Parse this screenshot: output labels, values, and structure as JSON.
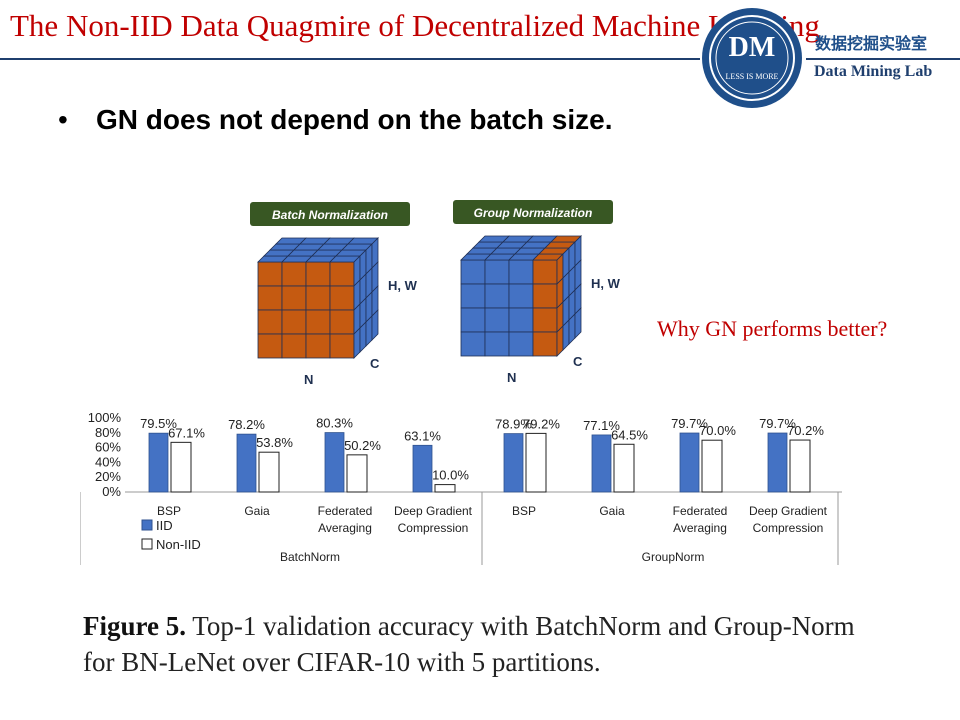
{
  "slide": {
    "title": "The Non-IID Data Quagmire of Decentralized Machine Learning",
    "bullet": "GN does not depend on the batch size.",
    "annotation": "Why GN performs better?",
    "accent_color": "#c00000"
  },
  "logo": {
    "monogram": "DM",
    "tagline": "LESS IS MORE",
    "lab_name_cn": "数据挖掘实验室",
    "lab_name_en": "Data Mining Lab"
  },
  "diagram": {
    "left": {
      "label": "Batch Normalization",
      "axis_hw": "H, W",
      "axis_c": "C",
      "axis_n": "N"
    },
    "right": {
      "label": "Group Normalization",
      "axis_hw": "H, W",
      "axis_c": "C",
      "axis_n": "N"
    },
    "colors": {
      "blue": "#4472c4",
      "orange": "#c55a11",
      "label_bg": "#385723"
    }
  },
  "chart_data": {
    "type": "bar",
    "yticks": [
      "100%",
      "80%",
      "60%",
      "40%",
      "20%",
      "0%"
    ],
    "ylim": [
      0,
      100
    ],
    "legend": [
      {
        "name": "IID",
        "color": "#4472c4"
      },
      {
        "name": "Non-IID",
        "color": "#ffffff"
      }
    ],
    "groups": [
      {
        "name": "BatchNorm",
        "categories": [
          {
            "lines": [
              "BSP"
            ],
            "iid": 79.5,
            "noniid": 67.1,
            "iid_label": "79.5%",
            "noniid_label": "67.1%"
          },
          {
            "lines": [
              "Gaia"
            ],
            "iid": 78.2,
            "noniid": 53.8,
            "iid_label": "78.2%",
            "noniid_label": "53.8%"
          },
          {
            "lines": [
              "Federated",
              "Averaging"
            ],
            "iid": 80.3,
            "noniid": 50.2,
            "iid_label": "80.3%",
            "noniid_label": "50.2%"
          },
          {
            "lines": [
              "Deep Gradient",
              "Compression"
            ],
            "iid": 63.1,
            "noniid": 10.0,
            "iid_label": "63.1%",
            "noniid_label": "10.0%"
          }
        ]
      },
      {
        "name": "GroupNorm",
        "categories": [
          {
            "lines": [
              "BSP"
            ],
            "iid": 78.9,
            "noniid": 79.2,
            "iid_label": "78.9%",
            "noniid_label": "79.2%"
          },
          {
            "lines": [
              "Gaia"
            ],
            "iid": 77.1,
            "noniid": 64.5,
            "iid_label": "77.1%",
            "noniid_label": "64.5%"
          },
          {
            "lines": [
              "Federated",
              "Averaging"
            ],
            "iid": 79.7,
            "noniid": 70.0,
            "iid_label": "79.7%",
            "noniid_label": "70.0%"
          },
          {
            "lines": [
              "Deep Gradient",
              "Compression"
            ],
            "iid": 79.7,
            "noniid": 70.2,
            "iid_label": "79.7%",
            "noniid_label": "70.2%"
          }
        ]
      }
    ]
  },
  "caption": {
    "label": "Figure 5.",
    "text": "Top-1 validation accuracy with BatchNorm and Group-Norm for BN-LeNet over CIFAR-10 with 5 partitions."
  }
}
